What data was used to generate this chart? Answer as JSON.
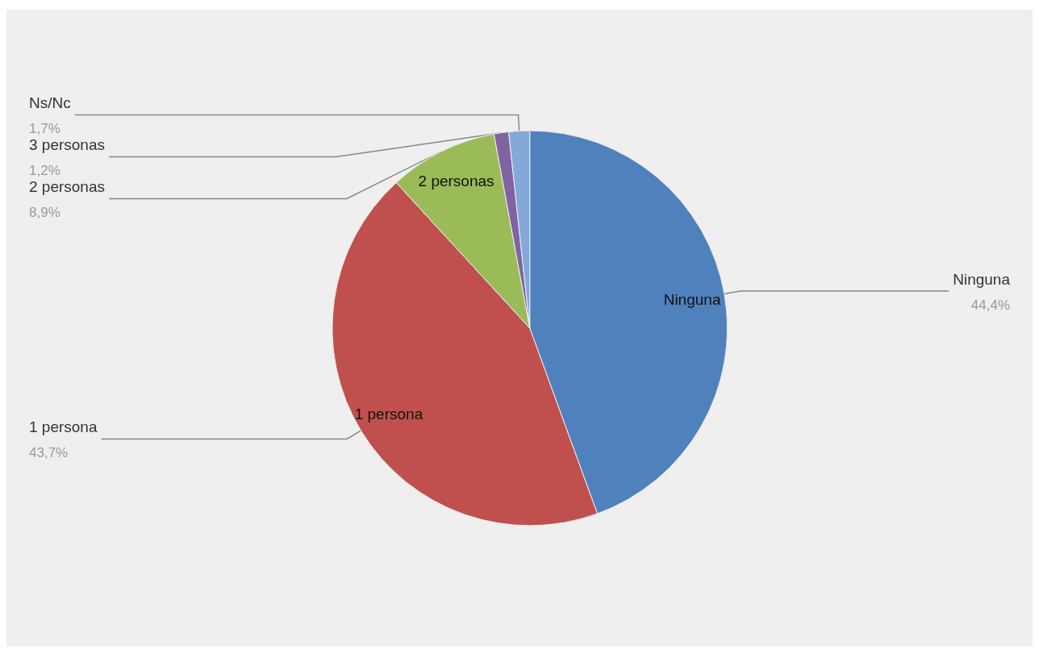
{
  "chart_data": {
    "type": "pie",
    "categories": [
      "Ninguna",
      "1 persona",
      "2 personas",
      "3 personas",
      "Ns/Nc"
    ],
    "values": [
      44.4,
      43.7,
      8.9,
      1.2,
      1.7
    ],
    "colors": [
      "#4f81bd",
      "#c0504d",
      "#9bbb59",
      "#8064a2",
      "#84a9d8"
    ],
    "value_labels": [
      "44,4%",
      "43,7%",
      "8,9%",
      "1,2%",
      "1,7%"
    ],
    "legend": false
  }
}
